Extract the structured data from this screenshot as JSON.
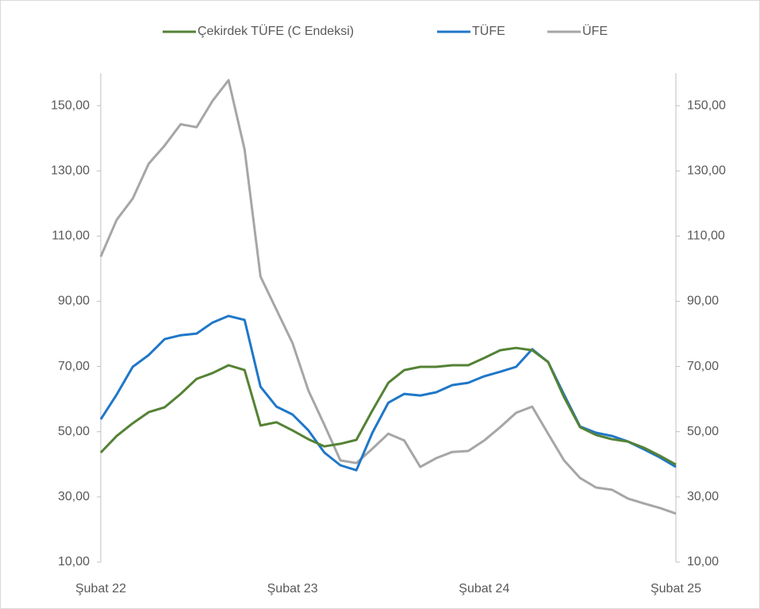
{
  "chart_data": {
    "type": "line",
    "categories": [
      "Şubat 22",
      null,
      null,
      null,
      null,
      null,
      null,
      null,
      null,
      null,
      null,
      null,
      "Şubat 23",
      null,
      null,
      null,
      null,
      null,
      null,
      null,
      null,
      null,
      null,
      null,
      "Şubat 24",
      null,
      null,
      null,
      null,
      null,
      null,
      null,
      null,
      null,
      null,
      null,
      "Şubat 25"
    ],
    "series": [
      {
        "name": "Çekirdek TÜFE (C Endeksi)",
        "color": "#548235",
        "values": [
          43.6,
          48.7,
          52.6,
          56.0,
          57.5,
          61.6,
          66.2,
          68.0,
          70.4,
          68.9,
          51.9,
          52.9,
          50.4,
          47.7,
          45.5,
          46.3,
          47.5,
          56.5,
          65.0,
          68.9,
          69.9,
          69.9,
          70.4,
          70.4,
          72.6,
          75.0,
          75.7,
          75.0,
          71.4,
          60.6,
          51.4,
          49.0,
          47.7,
          47.0,
          45.1,
          42.6,
          39.9
        ]
      },
      {
        "name": "TÜFE",
        "color": "#1f77c8",
        "values": [
          53.8,
          61.4,
          69.9,
          73.5,
          78.4,
          79.6,
          80.1,
          83.5,
          85.5,
          84.3,
          63.8,
          57.7,
          55.3,
          50.4,
          43.6,
          39.7,
          38.2,
          49.7,
          58.9,
          61.6,
          61.1,
          62.1,
          64.3,
          65.0,
          67.0,
          68.4,
          69.9,
          75.3,
          71.4,
          61.4,
          51.6,
          49.7,
          48.7,
          47.0,
          44.6,
          42.1,
          39.2
        ]
      },
      {
        "name": "ÜFE",
        "color": "#a6a6a6",
        "values": [
          103.7,
          115.0,
          121.5,
          132.2,
          137.8,
          144.3,
          143.4,
          151.5,
          157.8,
          136.6,
          97.6,
          87.4,
          77.2,
          62.6,
          52.1,
          41.2,
          40.4,
          44.8,
          49.4,
          47.3,
          39.2,
          41.9,
          43.8,
          44.1,
          47.3,
          51.4,
          55.8,
          57.7,
          49.4,
          41.2,
          35.8,
          32.9,
          32.2,
          29.5,
          28.0,
          26.6,
          24.9
        ]
      }
    ],
    "ylim": [
      10,
      160
    ],
    "yticks": [
      {
        "value": 10,
        "label": "10,00"
      },
      {
        "value": 30,
        "label": "30,00"
      },
      {
        "value": 50,
        "label": "50,00"
      },
      {
        "value": 70,
        "label": "70,00"
      },
      {
        "value": 90,
        "label": "90,00"
      },
      {
        "value": 110,
        "label": "110,00"
      },
      {
        "value": 130,
        "label": "130,00"
      },
      {
        "value": 150,
        "label": "150,00"
      }
    ],
    "y2lim": [
      10,
      160
    ],
    "y2ticks": [
      {
        "value": 10,
        "label": "10,00"
      },
      {
        "value": 30,
        "label": "30,00"
      },
      {
        "value": 50,
        "label": "50,00"
      },
      {
        "value": 70,
        "label": "70,00"
      },
      {
        "value": 90,
        "label": "90,00"
      },
      {
        "value": 110,
        "label": "110,00"
      },
      {
        "value": 130,
        "label": "130,00"
      },
      {
        "value": 150,
        "label": "150,00"
      }
    ],
    "legend": "top"
  }
}
